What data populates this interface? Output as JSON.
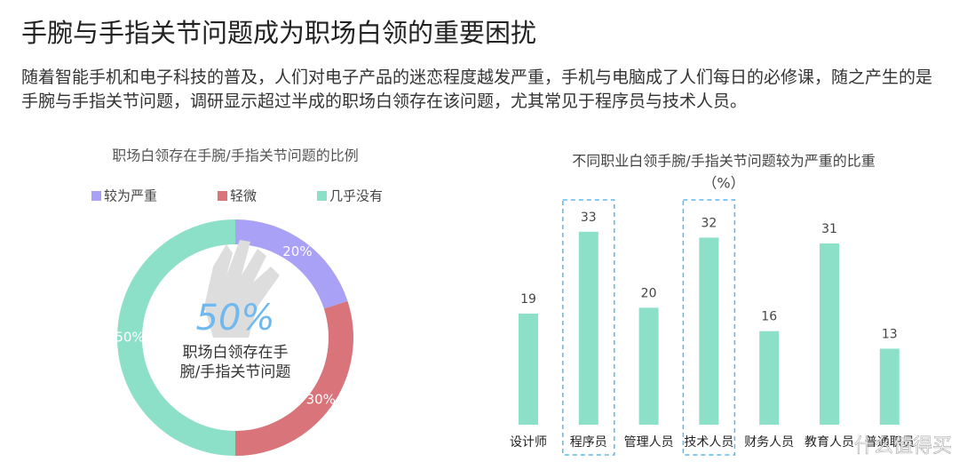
{
  "header": {
    "title": "手腕与手指关节问题成为职场白领的重要困扰",
    "paragraph": "随着智能手机和电子科技的普及，人们对电子产品的迷恋程度越发严重，手机与电脑成了人们每日的必修课，随之产生的是手腕与手指关节问题，调研显示超过半成的职场白领存在该问题，尤其常见于程序员与技术人员。"
  },
  "chart_data": [
    {
      "type": "donut",
      "title": "职场白领存在手腕/手指关节问题的比例",
      "categories": [
        "较为严重",
        "轻微",
        "几乎没有"
      ],
      "values": [
        20,
        30,
        50
      ],
      "value_labels": [
        "20%",
        "30%",
        "50%"
      ],
      "colors": [
        "#a9a1f5",
        "#d9747b",
        "#8de0c8"
      ],
      "center_value": 50,
      "center_value_label": "50%",
      "center_text": "职场白领存在手腕/手指关节问题",
      "legend": "top"
    },
    {
      "type": "bar",
      "title": "不同职业白领手腕/手指关节问题较为严重的比重",
      "subtitle": "（%）",
      "categories": [
        "设计师",
        "程序员",
        "管理人员",
        "技术人员",
        "财务人员",
        "教育人员",
        "普通职员"
      ],
      "values": [
        19,
        33,
        20,
        32,
        16,
        31,
        13
      ],
      "color": "#8de0c8",
      "highlight": [
        1,
        3
      ]
    }
  ],
  "watermark": "什么值得买"
}
